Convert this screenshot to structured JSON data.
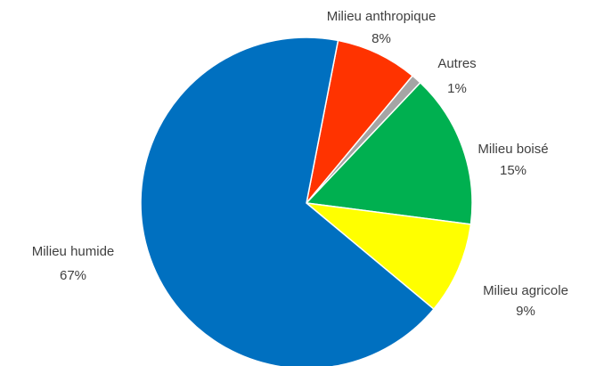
{
  "chart_data": {
    "type": "pie",
    "start_angle": 11,
    "categories": [
      "Milieu anthropique",
      "Autres",
      "Milieu boisé",
      "Milieu agricole",
      "Milieu humide"
    ],
    "values": [
      8,
      1,
      15,
      9,
      67
    ],
    "value_labels": [
      "8%",
      "1%",
      "15%",
      "9%",
      "67%"
    ],
    "colors": [
      "#ff3300",
      "#a5a5a5",
      "#00b050",
      "#ffff00",
      "#0070c0"
    ]
  }
}
